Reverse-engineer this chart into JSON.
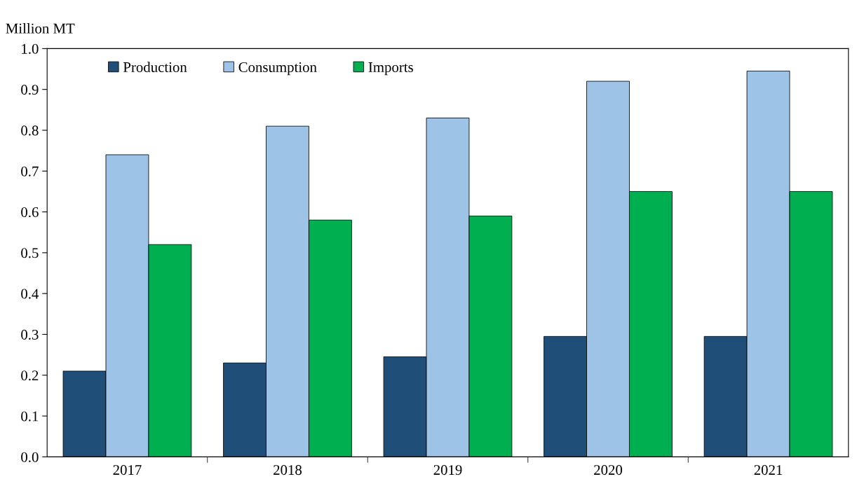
{
  "chart_data": {
    "type": "bar",
    "ylabel": "Million MT",
    "categories": [
      "2017",
      "2018",
      "2019",
      "2020",
      "2021"
    ],
    "series": [
      {
        "name": "Production",
        "color": "#1f4e79",
        "values": [
          0.21,
          0.23,
          0.245,
          0.295,
          0.295
        ]
      },
      {
        "name": "Consumption",
        "color": "#9dc3e6",
        "values": [
          0.74,
          0.81,
          0.83,
          0.92,
          0.945
        ]
      },
      {
        "name": "Imports",
        "color": "#00b050",
        "values": [
          0.52,
          0.58,
          0.59,
          0.65,
          0.65
        ]
      }
    ],
    "ylim": [
      0,
      1.0
    ],
    "yticks": [
      {
        "value": 0,
        "label": "0.0"
      },
      {
        "value": 0.1,
        "label": "0.1"
      },
      {
        "value": 0.2,
        "label": "0.2"
      },
      {
        "value": 0.3,
        "label": "0.3"
      },
      {
        "value": 0.4,
        "label": "0.4"
      },
      {
        "value": 0.5,
        "label": "0.5"
      },
      {
        "value": 0.6,
        "label": "0.6"
      },
      {
        "value": 0.7,
        "label": "0.7"
      },
      {
        "value": 0.8,
        "label": "0.8"
      },
      {
        "value": 0.9,
        "label": "0.9"
      },
      {
        "value": 1.0,
        "label": "1.0"
      }
    ],
    "grid": false,
    "legend": "top left"
  }
}
